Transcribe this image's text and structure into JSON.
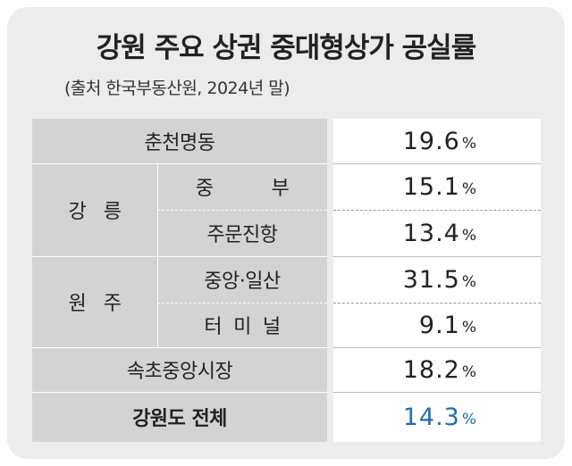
{
  "title": "강원 주요 상권 중대형상가 공실률",
  "subtitle": "(출처 한국부동산원, 2024년 말)",
  "chart_data": {
    "type": "table",
    "unit": "%",
    "rows": [
      {
        "region": "춘천명동",
        "area": "",
        "value": "19.6"
      },
      {
        "region": "강 릉",
        "area": "중 부",
        "value": "15.1"
      },
      {
        "region": "강 릉",
        "area": "주문진항",
        "value": "13.4"
      },
      {
        "region": "원 주",
        "area": "중앙·일산",
        "value": "31.5"
      },
      {
        "region": "원 주",
        "area": "터 미 널",
        "value": "9.1"
      },
      {
        "region": "속초중앙시장",
        "area": "",
        "value": "18.2"
      },
      {
        "region": "강원도 전체",
        "area": "",
        "value": "14.3"
      }
    ]
  },
  "labels": {
    "chuncheon": "춘천명동",
    "gangneung": "강   릉",
    "gangneung_a": "중          부",
    "gangneung_b": "주문진항",
    "wonju": "원   주",
    "wonju_a": "중앙·일산",
    "wonju_b": "터  미  널",
    "sokcho": "속초중앙시장",
    "total": "강원도 전체"
  },
  "values": {
    "v1": "19.6",
    "v2": "15.1",
    "v3": "13.4",
    "v4": "31.5",
    "v5": "9.1",
    "v6": "18.2",
    "v7": "14.3",
    "pct": "%"
  },
  "colors": {
    "accent": "#1e6fb6",
    "label_bg": "#d3d3d3",
    "card_bg": "#ececec"
  }
}
